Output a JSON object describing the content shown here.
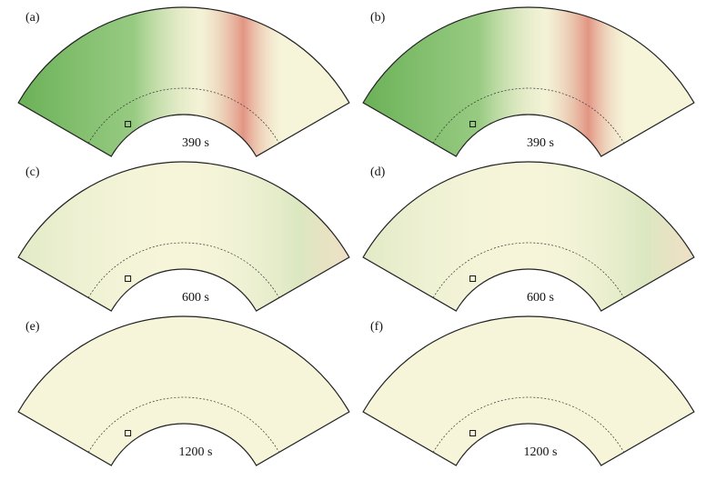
{
  "panels": [
    {
      "label": "(a)",
      "time": "390 s"
    },
    {
      "label": "(b)",
      "time": "390 s"
    },
    {
      "label": "(c)",
      "time": "600 s"
    },
    {
      "label": "(d)",
      "time": "600 s"
    },
    {
      "label": "(e)",
      "time": "1200 s"
    },
    {
      "label": "(f)",
      "time": "1200 s"
    }
  ]
}
